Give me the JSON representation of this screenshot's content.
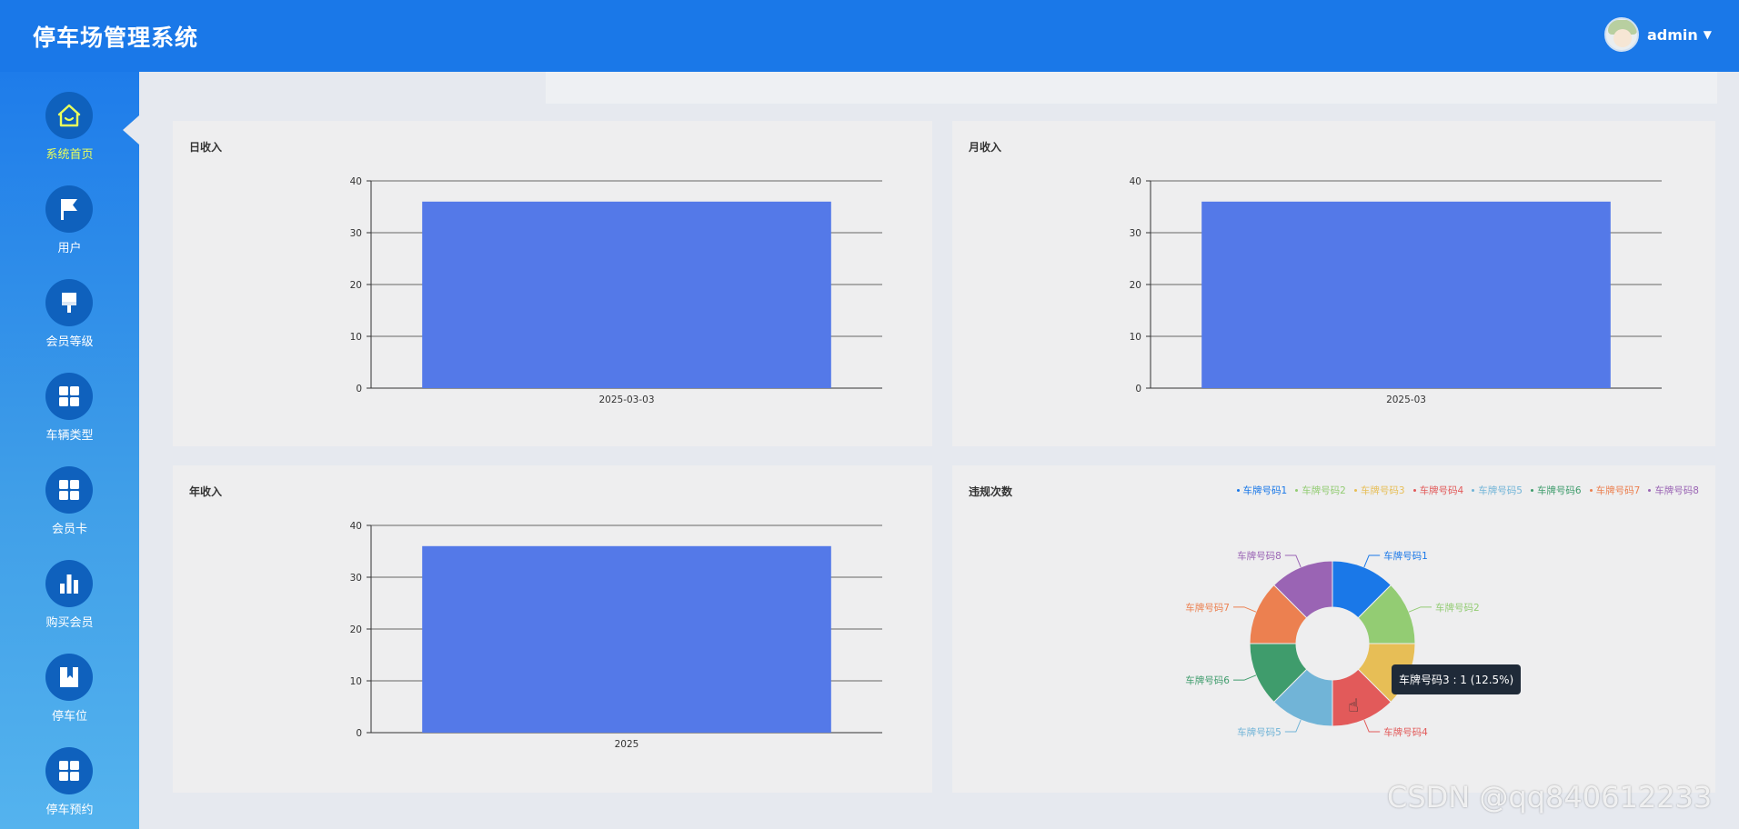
{
  "app": {
    "title": "停车场管理系统"
  },
  "user": {
    "name": "admin"
  },
  "sidebar": {
    "items": [
      {
        "label": "系统首页",
        "icon": "home-icon"
      },
      {
        "label": "用户",
        "icon": "flag-icon"
      },
      {
        "label": "会员等级",
        "icon": "brush-icon"
      },
      {
        "label": "车辆类型",
        "icon": "grid-icon"
      },
      {
        "label": "会员卡",
        "icon": "grid-icon"
      },
      {
        "label": "购买会员",
        "icon": "bar-chart-icon"
      },
      {
        "label": "停车位",
        "icon": "bookmark-icon"
      },
      {
        "label": "停车预约",
        "icon": "grid-icon"
      }
    ]
  },
  "panels": {
    "daily": {
      "title": "日收入"
    },
    "monthly": {
      "title": "月收入"
    },
    "yearly": {
      "title": "年收入"
    },
    "violations": {
      "title": "违规次数"
    }
  },
  "chart_data": [
    {
      "type": "bar",
      "title": "日收入",
      "categories": [
        "2025-03-03"
      ],
      "values": [
        36
      ],
      "ylim": [
        0,
        40
      ],
      "yticks": [
        0,
        10,
        20,
        30,
        40
      ],
      "color": "#5479e8"
    },
    {
      "type": "bar",
      "title": "月收入",
      "categories": [
        "2025-03"
      ],
      "values": [
        36
      ],
      "ylim": [
        0,
        40
      ],
      "yticks": [
        0,
        10,
        20,
        30,
        40
      ],
      "color": "#5479e8"
    },
    {
      "type": "bar",
      "title": "年收入",
      "categories": [
        "2025"
      ],
      "values": [
        36
      ],
      "ylim": [
        0,
        40
      ],
      "yticks": [
        0,
        10,
        20,
        30,
        40
      ],
      "color": "#5479e8"
    },
    {
      "type": "pie",
      "title": "违规次数",
      "legend_position": "top-right",
      "labels": [
        "车牌号码1",
        "车牌号码2",
        "车牌号码3",
        "车牌号码4",
        "车牌号码5",
        "车牌号码6",
        "车牌号码7",
        "车牌号码8"
      ],
      "values": [
        1,
        1,
        1,
        1,
        1,
        1,
        1,
        1
      ],
      "colors": [
        "#1a78e8",
        "#93cc73",
        "#e7be56",
        "#e25a5a",
        "#71b4d7",
        "#3f9c6c",
        "#ec8050",
        "#9a64b4"
      ]
    }
  ],
  "tooltip": {
    "text": "车牌号码3 : 1 (12.5%)"
  },
  "watermark": {
    "text": "CSDN @qq840612233"
  }
}
